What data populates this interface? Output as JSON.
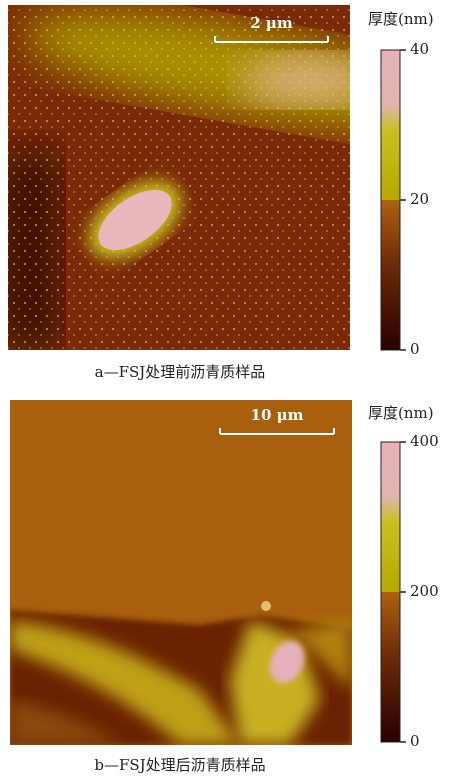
{
  "panels": [
    {
      "scale_bar": "2 μm",
      "colorbar": {
        "title": "厚度(nm)",
        "ticks": [
          0,
          20,
          40
        ]
      },
      "caption": "a—FSJ处理前沥青质样品"
    },
    {
      "scale_bar": "10 μm",
      "colorbar": {
        "title": "厚度(nm)",
        "ticks": [
          0,
          200,
          400
        ]
      },
      "caption": "b—FSJ处理后沥青质样品"
    }
  ]
}
